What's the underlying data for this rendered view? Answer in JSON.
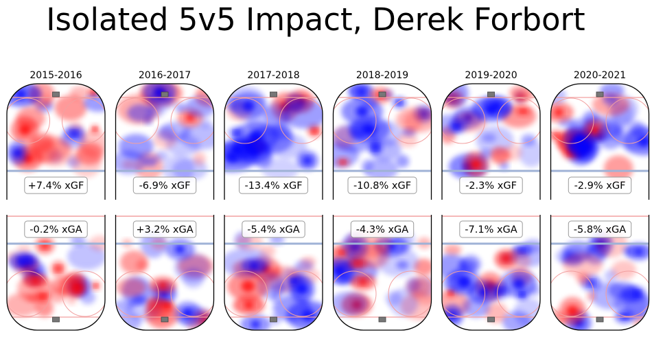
{
  "title": "Isolated 5v5 Impact, Derek Forbort",
  "chart_data": {
    "type": "heatmap",
    "title": "Isolated 5v5 Impact, Derek Forbort",
    "colors": {
      "positive": "#ff0000",
      "negative": "#0000ff",
      "zero": "#ffffff"
    },
    "seasons": [
      {
        "season": "2015-2016",
        "xgf_label": "+7.4% xGF",
        "xga_label": "-0.2% xGA",
        "xgf_pct": 7.4,
        "xga_pct": -0.2
      },
      {
        "season": "2016-2017",
        "xgf_label": "-6.9% xGF",
        "xga_label": "+3.2% xGA",
        "xgf_pct": -6.9,
        "xga_pct": 3.2
      },
      {
        "season": "2017-2018",
        "xgf_label": "-13.4% xGF",
        "xga_label": "-5.4% xGA",
        "xgf_pct": -13.4,
        "xga_pct": -5.4
      },
      {
        "season": "2018-2019",
        "xgf_label": "-10.8% xGF",
        "xga_label": "-4.3% xGA",
        "xgf_pct": -10.8,
        "xga_pct": -4.3
      },
      {
        "season": "2019-2020",
        "xgf_label": "-2.3% xGF",
        "xga_label": "-7.1% xGA",
        "xgf_pct": -2.3,
        "xga_pct": -7.1
      },
      {
        "season": "2020-2021",
        "xgf_label": "-2.9% xGF",
        "xga_label": "-5.8% xGA",
        "xgf_pct": -2.9,
        "xga_pct": -5.8
      }
    ]
  }
}
